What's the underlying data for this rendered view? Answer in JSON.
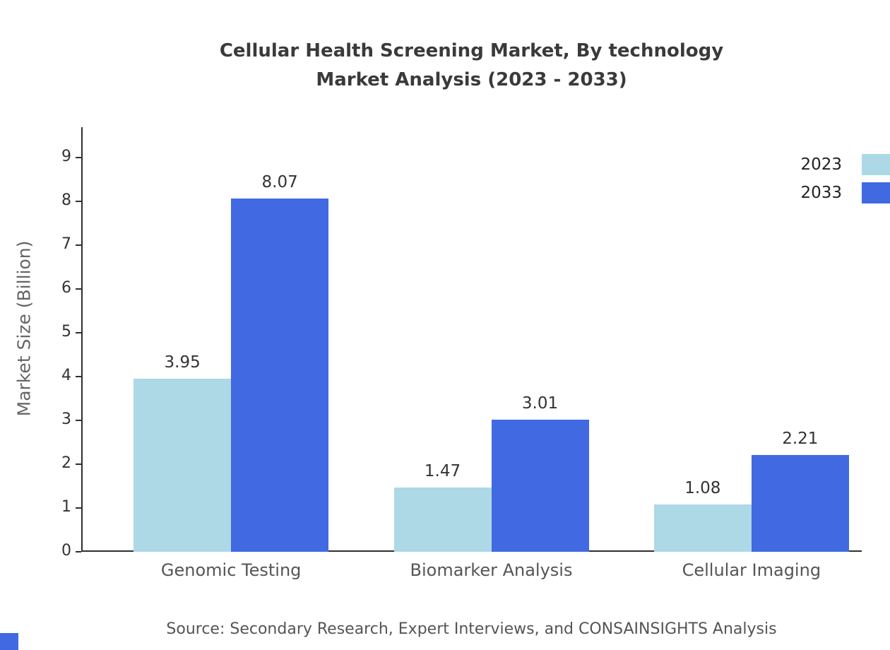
{
  "title": {
    "line1": "Cellular Health Screening Market, By technology",
    "line2": "Market Analysis (2023 - 2033)"
  },
  "y_axis_label": "Market Size (Billion)",
  "source": "Source: Secondary Research, Expert Interviews, and CONSAINSIGHTS Analysis",
  "legend": [
    {
      "label": "2023",
      "color": "#ADD8E6"
    },
    {
      "label": "2033",
      "color": "#4169E1"
    }
  ],
  "colors": {
    "series_2023": "#ADD8E6",
    "series_2033": "#4169E1",
    "axis": "#2f2f2f",
    "text": "#333333",
    "muted_text": "#555555",
    "accent_square": "#4169E1"
  },
  "chart_data": {
    "type": "bar",
    "title": "Cellular Health Screening Market, By technology Market Analysis (2023 - 2033)",
    "categories": [
      "Genomic Testing",
      "Biomarker Analysis",
      "Cellular Imaging"
    ],
    "series": [
      {
        "name": "2023",
        "color": "#ADD8E6",
        "values": [
          3.95,
          1.47,
          1.08
        ]
      },
      {
        "name": "2033",
        "color": "#4169E1",
        "values": [
          8.07,
          3.01,
          2.21
        ]
      }
    ],
    "xlabel": "",
    "ylabel": "Market Size (Billion)",
    "ylim": [
      0,
      9
    ],
    "yticks": [
      0,
      1,
      2,
      3,
      4,
      5,
      6,
      7,
      8,
      9
    ],
    "grid": false,
    "legend_position": "top-right"
  }
}
